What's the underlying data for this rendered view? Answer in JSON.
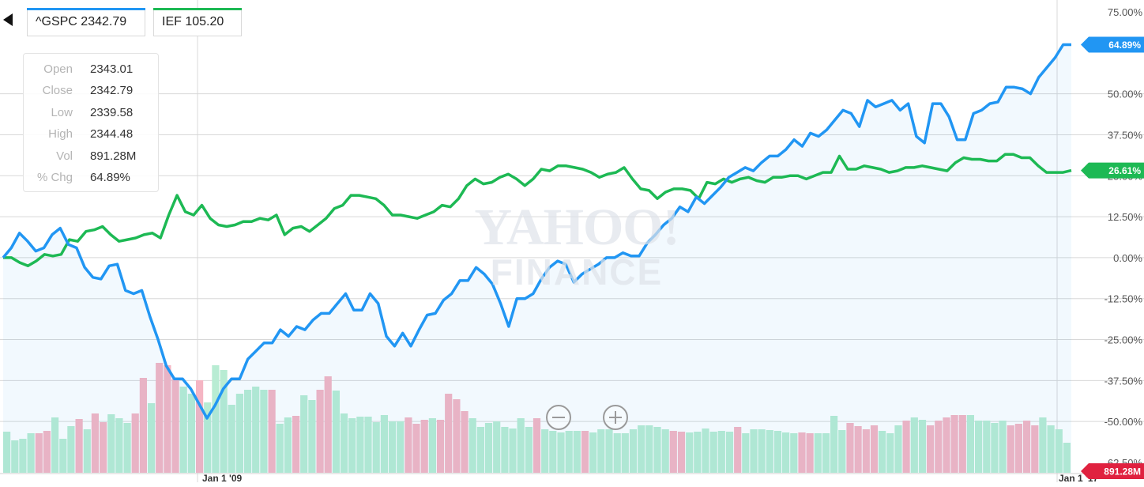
{
  "navigation": {
    "back_icon": "triangle-left-icon"
  },
  "tabs": [
    {
      "label": "^GSPC 2342.79",
      "color": "#2196f3"
    },
    {
      "label": "IEF 105.20",
      "color": "#1db954"
    }
  ],
  "tooltip": {
    "rows": [
      {
        "label": "Open",
        "value": "2343.01"
      },
      {
        "label": "Close",
        "value": "2342.79"
      },
      {
        "label": "Low",
        "value": "2339.58"
      },
      {
        "label": "High",
        "value": "2344.48"
      },
      {
        "label": "Vol",
        "value": "891.28M"
      },
      {
        "label": "% Chg",
        "value": "64.89%"
      }
    ]
  },
  "watermark": {
    "line1": "YAHOO!",
    "line2": "FINANCE"
  },
  "zoom": {
    "out_icon": "minus-circle-icon",
    "in_icon": "plus-circle-icon"
  },
  "chart_data": {
    "type": "line",
    "ylim": [
      -62.5,
      75
    ],
    "y_tick_labels": [
      "75.00%",
      "50.00%",
      "37.50%",
      "25.00%",
      "12.50%",
      "0.00%",
      "-12.50%",
      "-25.00%",
      "-37.50%",
      "-50.00%",
      "-62.50%"
    ],
    "y_tick_values": [
      75,
      50,
      37.5,
      25,
      12.5,
      0,
      -12.5,
      -25,
      -37.5,
      -50,
      -62.5
    ],
    "x_tick_labels": [
      "Jan 1 '09",
      "Jan 1 '17"
    ],
    "series": [
      {
        "name": "^GSPC",
        "color": "#2196f3",
        "end_label": "64.89%",
        "values": [
          0,
          3,
          7.5,
          5,
          2,
          3,
          7,
          9,
          4,
          3,
          -3,
          -6,
          -6.5,
          -2.5,
          -2,
          -10,
          -11,
          -10,
          -18,
          -25,
          -33,
          -37,
          -37,
          -40,
          -44.5,
          -49,
          -45,
          -40,
          -37,
          -37,
          -31,
          -28.5,
          -26,
          -26,
          -22,
          -24,
          -21,
          -22,
          -19,
          -17,
          -17,
          -14,
          -11,
          -16,
          -16,
          -11,
          -14,
          -24,
          -27,
          -23,
          -27,
          -22,
          -17.5,
          -17,
          -13,
          -11,
          -7,
          -7,
          -3,
          -5,
          -8,
          -14,
          -21,
          -12.5,
          -12.5,
          -11,
          -6.5,
          -3,
          -1,
          -2,
          -7.5,
          -5,
          -3.5,
          -2,
          0,
          0,
          1.5,
          0.5,
          0.5,
          4.5,
          7,
          10,
          12,
          15.5,
          14,
          18.5,
          16.5,
          19,
          21.5,
          24.5,
          26,
          27.5,
          26.5,
          29,
          31,
          31,
          33,
          36,
          34,
          38,
          37,
          39,
          42,
          45,
          44,
          40,
          48,
          46,
          47,
          48,
          45,
          47,
          37,
          35,
          47,
          47,
          43,
          36,
          36,
          44,
          45,
          47,
          47.5,
          52,
          52,
          51.5,
          50,
          55,
          58,
          61,
          65,
          65
        ]
      },
      {
        "name": "IEF",
        "color": "#1db954",
        "end_label": "26.61%",
        "values": [
          0,
          0,
          -1.5,
          -2.5,
          -1,
          1,
          0.5,
          1,
          5.5,
          5,
          8,
          8.5,
          9.5,
          7,
          5,
          5.5,
          6,
          7,
          7.5,
          6,
          13,
          19,
          14,
          13,
          16,
          12,
          10,
          9.5,
          10,
          11,
          11,
          12,
          11.5,
          13,
          7,
          9,
          9.5,
          8,
          10,
          12,
          15,
          16,
          19,
          19,
          18.5,
          18,
          16,
          13,
          13,
          12.5,
          12,
          13,
          14,
          16,
          15.5,
          18,
          22,
          24,
          22.5,
          23,
          24.5,
          25.5,
          24,
          22,
          24,
          27,
          26.5,
          28,
          28,
          27.5,
          27,
          26,
          24.5,
          25.5,
          26,
          27.5,
          24,
          21,
          20.5,
          18,
          20,
          21,
          21,
          20.5,
          18,
          23,
          22.5,
          24,
          23,
          24,
          24.5,
          23.5,
          23,
          24.5,
          24.5,
          25,
          25,
          24,
          25,
          26,
          26,
          31,
          27,
          27,
          28,
          27.5,
          27,
          26,
          26.5,
          27.5,
          27.5,
          28,
          27.5,
          27,
          26.5,
          29,
          30.5,
          30,
          30,
          29.5,
          29.5,
          31.5,
          31.5,
          30.5,
          30.5,
          28,
          26,
          26,
          26,
          26.6
        ]
      }
    ],
    "volume": {
      "label": "891.28M",
      "up_color": "#b8ecd3",
      "down_color": "#f5b5c3",
      "bars": [
        {
          "v": 0.52,
          "d": 0
        },
        {
          "v": 0.41,
          "d": 0
        },
        {
          "v": 0.43,
          "d": 0
        },
        {
          "v": 0.5,
          "d": 0
        },
        {
          "v": 0.5,
          "d": 1
        },
        {
          "v": 0.53,
          "d": 1
        },
        {
          "v": 0.7,
          "d": 0
        },
        {
          "v": 0.43,
          "d": 0
        },
        {
          "v": 0.59,
          "d": 0
        },
        {
          "v": 0.68,
          "d": 1
        },
        {
          "v": 0.55,
          "d": 0
        },
        {
          "v": 0.75,
          "d": 1
        },
        {
          "v": 0.64,
          "d": 1
        },
        {
          "v": 0.74,
          "d": 0
        },
        {
          "v": 0.69,
          "d": 0
        },
        {
          "v": 0.63,
          "d": 0
        },
        {
          "v": 0.75,
          "d": 1
        },
        {
          "v": 1.2,
          "d": 1
        },
        {
          "v": 0.88,
          "d": 0
        },
        {
          "v": 1.39,
          "d": 1
        },
        {
          "v": 1.36,
          "d": 1
        },
        {
          "v": 1.19,
          "d": 1
        },
        {
          "v": 1.09,
          "d": 0
        },
        {
          "v": 1.0,
          "d": 0
        },
        {
          "v": 1.17,
          "d": 1
        },
        {
          "v": 0.89,
          "d": 0
        },
        {
          "v": 1.36,
          "d": 0
        },
        {
          "v": 1.3,
          "d": 0
        },
        {
          "v": 0.86,
          "d": 0
        },
        {
          "v": 1.0,
          "d": 0
        },
        {
          "v": 1.05,
          "d": 0
        },
        {
          "v": 1.09,
          "d": 0
        },
        {
          "v": 1.05,
          "d": 0
        },
        {
          "v": 1.05,
          "d": 1
        },
        {
          "v": 0.62,
          "d": 0
        },
        {
          "v": 0.7,
          "d": 0
        },
        {
          "v": 0.72,
          "d": 1
        },
        {
          "v": 0.98,
          "d": 0
        },
        {
          "v": 0.92,
          "d": 0
        },
        {
          "v": 1.05,
          "d": 1
        },
        {
          "v": 1.22,
          "d": 1
        },
        {
          "v": 1.04,
          "d": 0
        },
        {
          "v": 0.75,
          "d": 0
        },
        {
          "v": 0.69,
          "d": 0
        },
        {
          "v": 0.71,
          "d": 0
        },
        {
          "v": 0.71,
          "d": 0
        },
        {
          "v": 0.64,
          "d": 0
        },
        {
          "v": 0.73,
          "d": 0
        },
        {
          "v": 0.65,
          "d": 0
        },
        {
          "v": 0.65,
          "d": 0
        },
        {
          "v": 0.7,
          "d": 1
        },
        {
          "v": 0.62,
          "d": 1
        },
        {
          "v": 0.67,
          "d": 1
        },
        {
          "v": 0.69,
          "d": 0
        },
        {
          "v": 0.67,
          "d": 1
        },
        {
          "v": 1.0,
          "d": 1
        },
        {
          "v": 0.93,
          "d": 1
        },
        {
          "v": 0.78,
          "d": 1
        },
        {
          "v": 0.69,
          "d": 0
        },
        {
          "v": 0.58,
          "d": 0
        },
        {
          "v": 0.63,
          "d": 0
        },
        {
          "v": 0.65,
          "d": 0
        },
        {
          "v": 0.58,
          "d": 0
        },
        {
          "v": 0.56,
          "d": 0
        },
        {
          "v": 0.69,
          "d": 0
        },
        {
          "v": 0.58,
          "d": 0
        },
        {
          "v": 0.69,
          "d": 1
        },
        {
          "v": 0.55,
          "d": 0
        },
        {
          "v": 0.53,
          "d": 0
        },
        {
          "v": 0.51,
          "d": 0
        },
        {
          "v": 0.53,
          "d": 0
        },
        {
          "v": 0.53,
          "d": 0
        },
        {
          "v": 0.53,
          "d": 1
        },
        {
          "v": 0.51,
          "d": 0
        },
        {
          "v": 0.55,
          "d": 0
        },
        {
          "v": 0.55,
          "d": 0
        },
        {
          "v": 0.5,
          "d": 0
        },
        {
          "v": 0.5,
          "d": 0
        },
        {
          "v": 0.55,
          "d": 0
        },
        {
          "v": 0.6,
          "d": 0
        },
        {
          "v": 0.6,
          "d": 0
        },
        {
          "v": 0.58,
          "d": 0
        },
        {
          "v": 0.55,
          "d": 0
        },
        {
          "v": 0.53,
          "d": 1
        },
        {
          "v": 0.52,
          "d": 1
        },
        {
          "v": 0.51,
          "d": 0
        },
        {
          "v": 0.52,
          "d": 0
        },
        {
          "v": 0.56,
          "d": 0
        },
        {
          "v": 0.52,
          "d": 0
        },
        {
          "v": 0.53,
          "d": 0
        },
        {
          "v": 0.52,
          "d": 0
        },
        {
          "v": 0.58,
          "d": 1
        },
        {
          "v": 0.5,
          "d": 0
        },
        {
          "v": 0.55,
          "d": 0
        },
        {
          "v": 0.55,
          "d": 0
        },
        {
          "v": 0.54,
          "d": 0
        },
        {
          "v": 0.53,
          "d": 0
        },
        {
          "v": 0.51,
          "d": 0
        },
        {
          "v": 0.5,
          "d": 0
        },
        {
          "v": 0.51,
          "d": 1
        },
        {
          "v": 0.5,
          "d": 1
        },
        {
          "v": 0.5,
          "d": 0
        },
        {
          "v": 0.5,
          "d": 0
        },
        {
          "v": 0.72,
          "d": 0
        },
        {
          "v": 0.54,
          "d": 0
        },
        {
          "v": 0.63,
          "d": 1
        },
        {
          "v": 0.59,
          "d": 1
        },
        {
          "v": 0.55,
          "d": 1
        },
        {
          "v": 0.6,
          "d": 1
        },
        {
          "v": 0.53,
          "d": 0
        },
        {
          "v": 0.5,
          "d": 0
        },
        {
          "v": 0.6,
          "d": 0
        },
        {
          "v": 0.66,
          "d": 1
        },
        {
          "v": 0.7,
          "d": 0
        },
        {
          "v": 0.67,
          "d": 0
        },
        {
          "v": 0.6,
          "d": 1
        },
        {
          "v": 0.66,
          "d": 1
        },
        {
          "v": 0.7,
          "d": 1
        },
        {
          "v": 0.73,
          "d": 1
        },
        {
          "v": 0.73,
          "d": 1
        },
        {
          "v": 0.73,
          "d": 0
        },
        {
          "v": 0.66,
          "d": 0
        },
        {
          "v": 0.66,
          "d": 0
        },
        {
          "v": 0.63,
          "d": 0
        },
        {
          "v": 0.66,
          "d": 0
        },
        {
          "v": 0.6,
          "d": 1
        },
        {
          "v": 0.62,
          "d": 1
        },
        {
          "v": 0.66,
          "d": 1
        },
        {
          "v": 0.6,
          "d": 1
        },
        {
          "v": 0.7,
          "d": 0
        },
        {
          "v": 0.6,
          "d": 0
        },
        {
          "v": 0.55,
          "d": 0
        },
        {
          "v": 0.38,
          "d": 0
        }
      ]
    }
  }
}
